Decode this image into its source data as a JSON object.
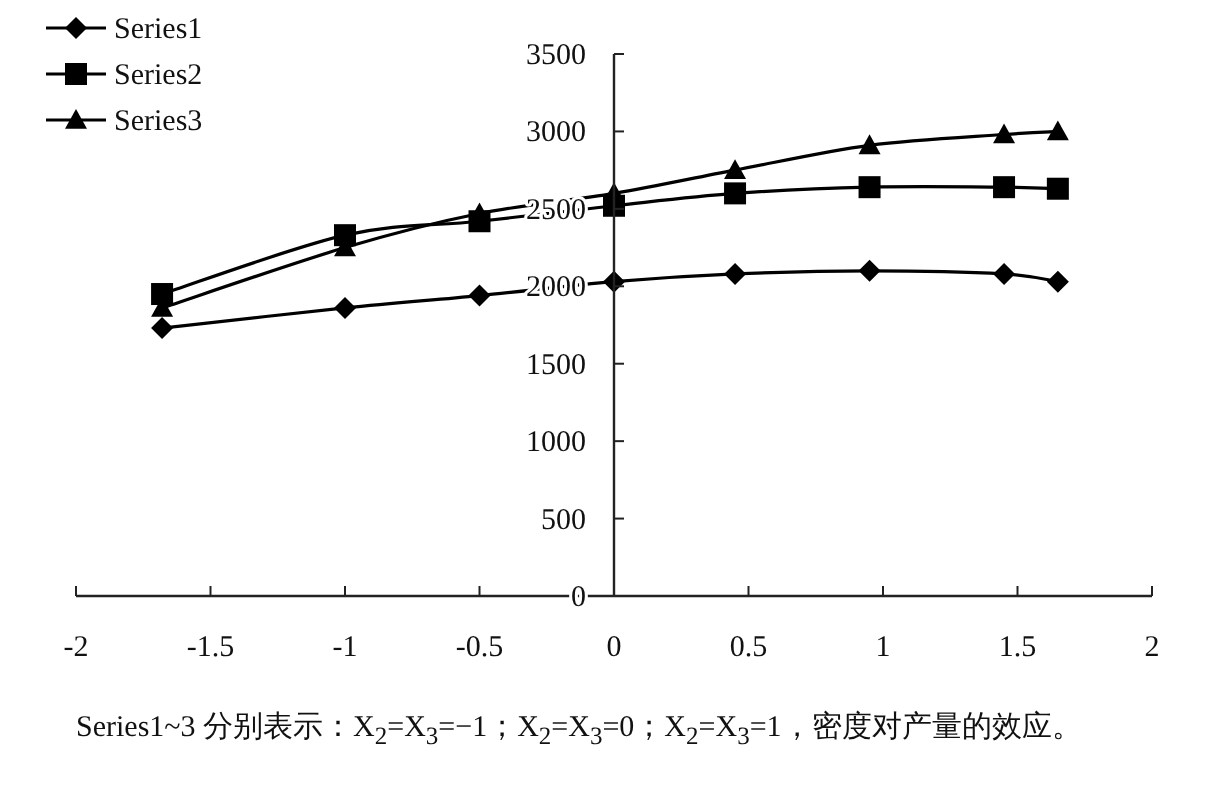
{
  "chart_data": {
    "type": "line",
    "x": [
      -1.68,
      -1,
      -0.5,
      0,
      0.45,
      0.95,
      1.45,
      1.65
    ],
    "series": [
      {
        "name": "Series1",
        "color": "#000000",
        "marker": "diamond",
        "values": [
          1730,
          1860,
          1940,
          2030,
          2080,
          2100,
          2080,
          2030
        ]
      },
      {
        "name": "Series2",
        "color": "#000000",
        "marker": "square",
        "values": [
          1950,
          2330,
          2420,
          2520,
          2600,
          2640,
          2640,
          2630
        ]
      },
      {
        "name": "Series3",
        "color": "#000000",
        "marker": "triangle",
        "values": [
          1860,
          2250,
          2470,
          2600,
          2750,
          2910,
          2980,
          3000
        ]
      }
    ],
    "xlim": [
      -2,
      2
    ],
    "xticks": [
      -2,
      -1.5,
      -1,
      -0.5,
      0,
      0.5,
      1,
      1.5,
      2
    ],
    "ylim": [
      0,
      3500
    ],
    "yticks": [
      0,
      500,
      1000,
      1500,
      2000,
      2500,
      3000,
      3500
    ],
    "grid": false,
    "legend": "top left",
    "line_style": "solid",
    "annotations": [
      "Series1~3 分别表示：X$_{2}$=X$_{3}$=−1；X$_{2}$=X$_{3}$=0；X$_{2}$=X$_{3}$=1，密度对产量的效应。"
    ]
  }
}
